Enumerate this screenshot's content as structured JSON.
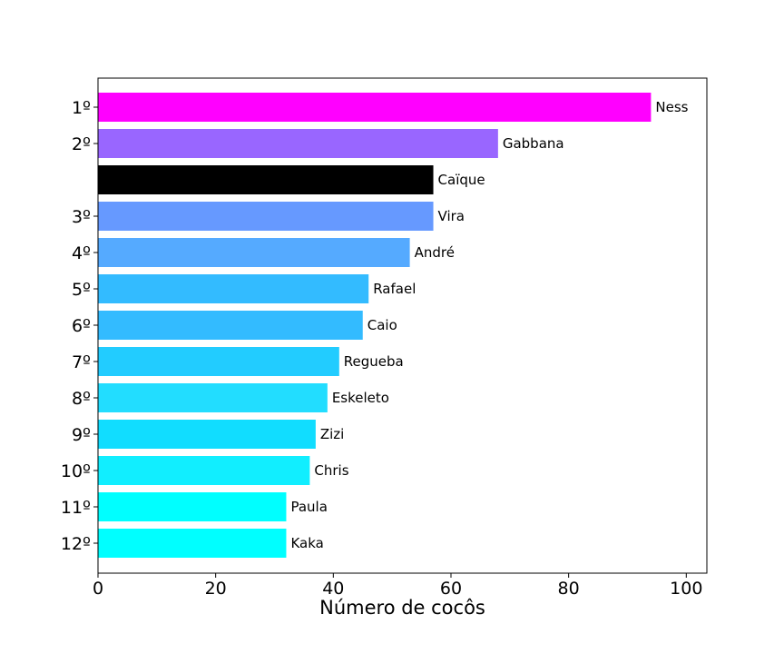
{
  "chart_data": {
    "type": "bar",
    "orientation": "horizontal",
    "xlabel": "Número de cocôs",
    "xlim": [
      0,
      103.5
    ],
    "xticks": [
      "0",
      "20",
      "40",
      "60",
      "80",
      "100"
    ],
    "grid": false,
    "bars": [
      {
        "rank": "1º",
        "name": "Ness",
        "value": 94,
        "color": "#ff00ff"
      },
      {
        "rank": "2º",
        "name": "Gabbana",
        "value": 68,
        "color": "#9966ff"
      },
      {
        "rank": "",
        "name": "Caïque",
        "value": 57,
        "color": "#000000"
      },
      {
        "rank": "3º",
        "name": "Vira",
        "value": 57,
        "color": "#6699ff"
      },
      {
        "rank": "4º",
        "name": "André",
        "value": 53,
        "color": "#55aaff"
      },
      {
        "rank": "5º",
        "name": "Rafael",
        "value": 46,
        "color": "#33bbff"
      },
      {
        "rank": "6º",
        "name": "Caio",
        "value": 45,
        "color": "#33bbff"
      },
      {
        "rank": "7º",
        "name": "Regueba",
        "value": 41,
        "color": "#22ccff"
      },
      {
        "rank": "8º",
        "name": "Eskeleto",
        "value": 39,
        "color": "#22ddff"
      },
      {
        "rank": "9º",
        "name": "Zizi",
        "value": 37,
        "color": "#11ddff"
      },
      {
        "rank": "10º",
        "name": "Chris",
        "value": 36,
        "color": "#11eeff"
      },
      {
        "rank": "11º",
        "name": "Paula",
        "value": 32,
        "color": "#00ffff"
      },
      {
        "rank": "12º",
        "name": "Kaka",
        "value": 32,
        "color": "#00ffff"
      }
    ]
  }
}
